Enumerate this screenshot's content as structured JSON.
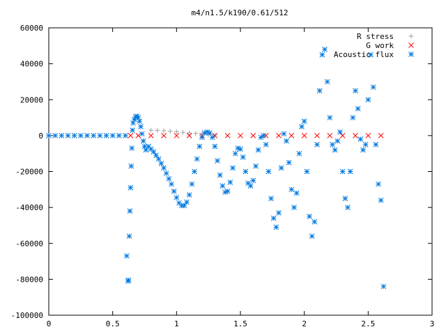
{
  "chart_data": {
    "type": "scatter",
    "title": "m4/n1.5/k190/0.61/512",
    "xlabel": "",
    "ylabel": "",
    "xlim": [
      0,
      3
    ],
    "ylim": [
      -100000,
      60000
    ],
    "grid": false,
    "legend_position": "top-right",
    "x_ticks": [
      0,
      0.5,
      1,
      1.5,
      2,
      2.5,
      3
    ],
    "x_tick_labels": [
      "0",
      "0.5",
      "1",
      "1.5",
      "2",
      "2.5",
      "3"
    ],
    "y_ticks": [
      60000,
      40000,
      20000,
      0,
      -20000,
      -40000,
      -60000,
      -80000,
      -100000
    ],
    "y_tick_labels": [
      "60000",
      "40000",
      "20000",
      "0",
      "-20000",
      "-40000",
      "-60000",
      "-80000",
      "-100000"
    ],
    "series": [
      {
        "name": "R stress",
        "marker": "+",
        "color": "#a0a0a0",
        "points": [
          [
            0.8,
            3000
          ],
          [
            0.85,
            2900
          ],
          [
            0.9,
            2700
          ],
          [
            0.95,
            2400
          ],
          [
            1.0,
            2100
          ],
          [
            1.05,
            1800
          ],
          [
            1.1,
            1500
          ],
          [
            1.15,
            1200
          ],
          [
            1.2,
            900
          ],
          [
            1.25,
            600
          ],
          [
            1.3,
            300
          ]
        ]
      },
      {
        "name": "G work",
        "marker": "x",
        "color": "#ff0000",
        "points": [
          [
            0.64,
            0
          ],
          [
            0.7,
            0
          ],
          [
            0.8,
            0
          ],
          [
            0.9,
            0
          ],
          [
            1.0,
            0
          ],
          [
            1.1,
            0
          ],
          [
            1.2,
            0
          ],
          [
            1.3,
            0
          ],
          [
            1.4,
            0
          ],
          [
            1.5,
            0
          ],
          [
            1.6,
            0
          ],
          [
            1.7,
            0
          ],
          [
            1.8,
            0
          ],
          [
            1.9,
            0
          ],
          [
            2.0,
            0
          ],
          [
            2.1,
            0
          ],
          [
            2.2,
            0
          ],
          [
            2.3,
            0
          ],
          [
            2.4,
            0
          ],
          [
            2.5,
            0
          ],
          [
            2.6,
            0
          ]
        ]
      },
      {
        "name": "Acoustic flux",
        "marker": "*",
        "color": "#0078e0",
        "points": [
          [
            0.0,
            0
          ],
          [
            0.05,
            0
          ],
          [
            0.1,
            0
          ],
          [
            0.15,
            0
          ],
          [
            0.2,
            0
          ],
          [
            0.25,
            0
          ],
          [
            0.3,
            0
          ],
          [
            0.35,
            0
          ],
          [
            0.4,
            0
          ],
          [
            0.45,
            0
          ],
          [
            0.5,
            0
          ],
          [
            0.55,
            0
          ],
          [
            0.6,
            0
          ],
          [
            0.61,
            -67000
          ],
          [
            0.62,
            -81000
          ],
          [
            0.625,
            -80500
          ],
          [
            0.63,
            -56000
          ],
          [
            0.635,
            -42000
          ],
          [
            0.64,
            -29000
          ],
          [
            0.645,
            -17000
          ],
          [
            0.65,
            -7000
          ],
          [
            0.655,
            3000
          ],
          [
            0.66,
            7000
          ],
          [
            0.67,
            9000
          ],
          [
            0.68,
            10500
          ],
          [
            0.69,
            10800
          ],
          [
            0.7,
            10000
          ],
          [
            0.71,
            8000
          ],
          [
            0.72,
            5000
          ],
          [
            0.73,
            1000
          ],
          [
            0.74,
            -3000
          ],
          [
            0.75,
            -6000
          ],
          [
            0.76,
            -8000
          ],
          [
            0.78,
            -6000
          ],
          [
            0.8,
            -7500
          ],
          [
            0.82,
            -9000
          ],
          [
            0.84,
            -11000
          ],
          [
            0.86,
            -13000
          ],
          [
            0.88,
            -15500
          ],
          [
            0.9,
            -18000
          ],
          [
            0.92,
            -21000
          ],
          [
            0.94,
            -24000
          ],
          [
            0.96,
            -27000
          ],
          [
            0.98,
            -31000
          ],
          [
            1.0,
            -34500
          ],
          [
            1.02,
            -37500
          ],
          [
            1.04,
            -39000
          ],
          [
            1.06,
            -39000
          ],
          [
            1.08,
            -37000
          ],
          [
            1.1,
            -33000
          ],
          [
            1.12,
            -27000
          ],
          [
            1.14,
            -20000
          ],
          [
            1.16,
            -13000
          ],
          [
            1.18,
            -6000
          ],
          [
            1.2,
            -1000
          ],
          [
            1.22,
            1500
          ],
          [
            1.24,
            2000
          ],
          [
            1.26,
            1500
          ],
          [
            1.28,
            -1000
          ],
          [
            1.3,
            -6000
          ],
          [
            1.32,
            -14000
          ],
          [
            1.34,
            -22000
          ],
          [
            1.36,
            -28000
          ],
          [
            1.38,
            -31500
          ],
          [
            1.4,
            -31000
          ],
          [
            1.42,
            -26000
          ],
          [
            1.44,
            -18000
          ],
          [
            1.46,
            -10000
          ],
          [
            1.48,
            -7000
          ],
          [
            1.5,
            -7500
          ],
          [
            1.52,
            -12000
          ],
          [
            1.54,
            -20000
          ],
          [
            1.56,
            -26500
          ],
          [
            1.58,
            -28000
          ],
          [
            1.6,
            -25000
          ],
          [
            1.62,
            -17000
          ],
          [
            1.64,
            -8000
          ],
          [
            1.66,
            -1000
          ],
          [
            1.68,
            0
          ],
          [
            1.7,
            -5000
          ],
          [
            1.72,
            -20000
          ],
          [
            1.74,
            -35000
          ],
          [
            1.76,
            -46000
          ],
          [
            1.78,
            -51000
          ],
          [
            1.8,
            -43000
          ],
          [
            1.82,
            -18000
          ],
          [
            1.84,
            1000
          ],
          [
            1.86,
            -3000
          ],
          [
            1.88,
            -15000
          ],
          [
            1.9,
            -30000
          ],
          [
            1.92,
            -40000
          ],
          [
            1.94,
            -32000
          ],
          [
            1.96,
            -10000
          ],
          [
            1.98,
            5000
          ],
          [
            2.0,
            8000
          ],
          [
            2.02,
            -20000
          ],
          [
            2.04,
            -45000
          ],
          [
            2.06,
            -56000
          ],
          [
            2.08,
            -48000
          ],
          [
            2.1,
            -5000
          ],
          [
            2.12,
            25000
          ],
          [
            2.14,
            45000
          ],
          [
            2.16,
            48000
          ],
          [
            2.18,
            30000
          ],
          [
            2.2,
            10000
          ],
          [
            2.22,
            -5000
          ],
          [
            2.24,
            -8000
          ],
          [
            2.26,
            -3000
          ],
          [
            2.28,
            2000
          ],
          [
            2.3,
            -20000
          ],
          [
            2.32,
            -35000
          ],
          [
            2.34,
            -40000
          ],
          [
            2.36,
            -20000
          ],
          [
            2.38,
            10000
          ],
          [
            2.4,
            25000
          ],
          [
            2.42,
            15000
          ],
          [
            2.44,
            -2000
          ],
          [
            2.46,
            -8000
          ],
          [
            2.48,
            -5000
          ],
          [
            2.5,
            20000
          ],
          [
            2.52,
            45000
          ],
          [
            2.54,
            27000
          ],
          [
            2.56,
            -5000
          ],
          [
            2.58,
            -27000
          ],
          [
            2.6,
            -36000
          ],
          [
            2.62,
            -84000
          ]
        ]
      }
    ]
  }
}
